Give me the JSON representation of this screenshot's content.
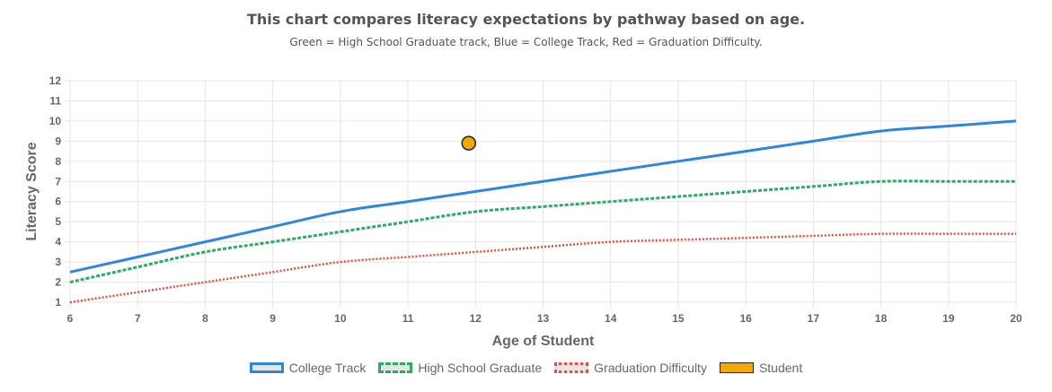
{
  "title": "This chart compares literacy expectations by pathway based on age.",
  "subtitle": "Green = High School Graduate track, Blue = College Track, Red = Graduation Difficulty.",
  "chart_data": {
    "type": "line",
    "xlabel": "Age of Student",
    "ylabel": "Literacy Score",
    "xlim": [
      6,
      20
    ],
    "ylim": [
      1,
      12
    ],
    "xticks": [
      "6",
      "7",
      "8",
      "9",
      "10",
      "11",
      "12",
      "13",
      "14",
      "15",
      "16",
      "17",
      "18",
      "19",
      "20"
    ],
    "yticks": [
      "1",
      "2",
      "3",
      "4",
      "5",
      "6",
      "7",
      "8",
      "9",
      "10",
      "11",
      "12"
    ],
    "grid": true,
    "legend": "bottom",
    "series": [
      {
        "name": "College Track",
        "color": "#2e86de",
        "style": "solid",
        "x": [
          6,
          7,
          8,
          9,
          10,
          11,
          12,
          13,
          14,
          15,
          16,
          17,
          18,
          19,
          20
        ],
        "y": [
          2.5,
          3.25,
          4,
          4.75,
          5.5,
          6,
          6.5,
          7,
          7.5,
          8,
          8.5,
          9,
          9.5,
          9.75,
          10
        ]
      },
      {
        "name": "High School Graduate",
        "color": "#27ae60",
        "style": "dashed",
        "x": [
          6,
          7,
          8,
          9,
          10,
          11,
          12,
          13,
          14,
          15,
          16,
          17,
          18,
          19,
          20
        ],
        "y": [
          2,
          2.75,
          3.5,
          4,
          4.5,
          5,
          5.5,
          5.75,
          6,
          6.25,
          6.5,
          6.75,
          7,
          7,
          7
        ]
      },
      {
        "name": "Graduation Difficulty",
        "color": "#e74c3c",
        "style": "dotted",
        "x": [
          6,
          7,
          8,
          9,
          10,
          11,
          12,
          13,
          14,
          15,
          16,
          17,
          18,
          19,
          20
        ],
        "y": [
          1,
          1.5,
          2,
          2.5,
          3,
          3.25,
          3.5,
          3.75,
          4,
          4.1,
          4.2,
          4.3,
          4.4,
          4.4,
          4.4
        ]
      },
      {
        "name": "Student",
        "color": "#f5a800",
        "style": "point",
        "x": [
          11.9
        ],
        "y": [
          8.9
        ]
      }
    ]
  }
}
